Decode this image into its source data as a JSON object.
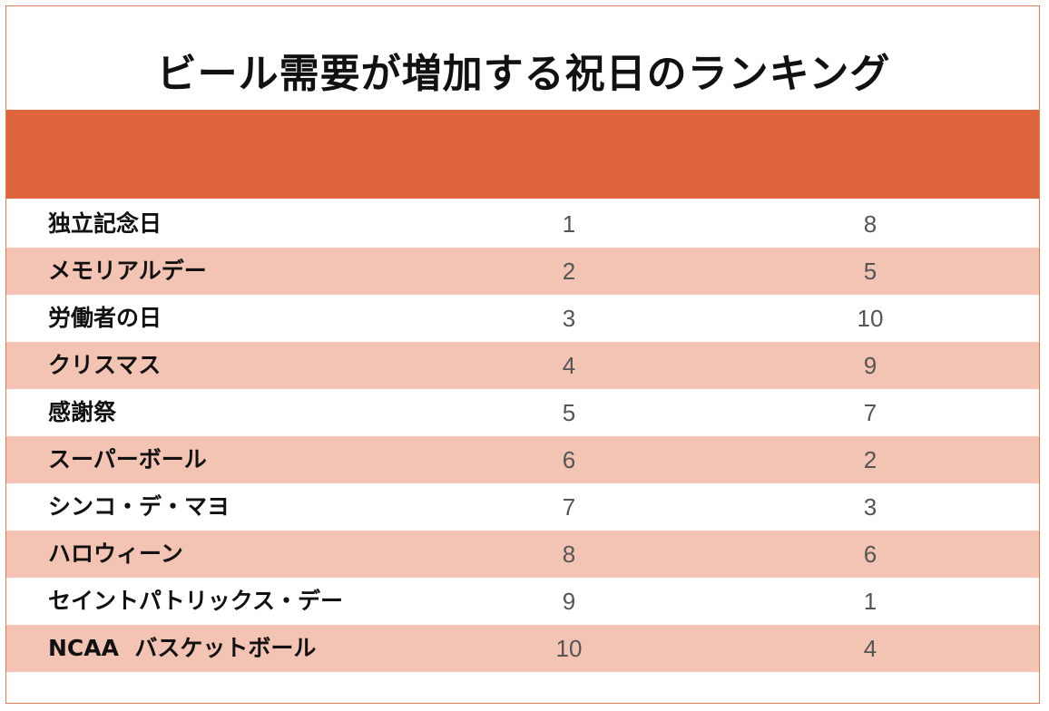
{
  "title": "ビール需要が増加する祝日のランキング",
  "colors": {
    "header_band": "#e0653f",
    "alt_row": "#f3c3b4",
    "border": "#e07a52"
  },
  "rows": [
    {
      "name": "独立記念日",
      "a": "1",
      "b": "8"
    },
    {
      "name": "メモリアルデー",
      "a": "2",
      "b": "5"
    },
    {
      "name": "労働者の日",
      "a": "3",
      "b": "10"
    },
    {
      "name": "クリスマス",
      "a": "4",
      "b": "9"
    },
    {
      "name": "感謝祭",
      "a": "5",
      "b": "7"
    },
    {
      "name": "スーパーボール",
      "a": "6",
      "b": "2"
    },
    {
      "name": "シンコ・デ・マヨ",
      "a": "7",
      "b": "3"
    },
    {
      "name": "ハロウィーン",
      "a": "8",
      "b": "6"
    },
    {
      "name": "セイントパトリックス・デー",
      "a": "9",
      "b": "1"
    },
    {
      "name": "NCAA  バスケットボール",
      "a": "10",
      "b": "4"
    }
  ]
}
